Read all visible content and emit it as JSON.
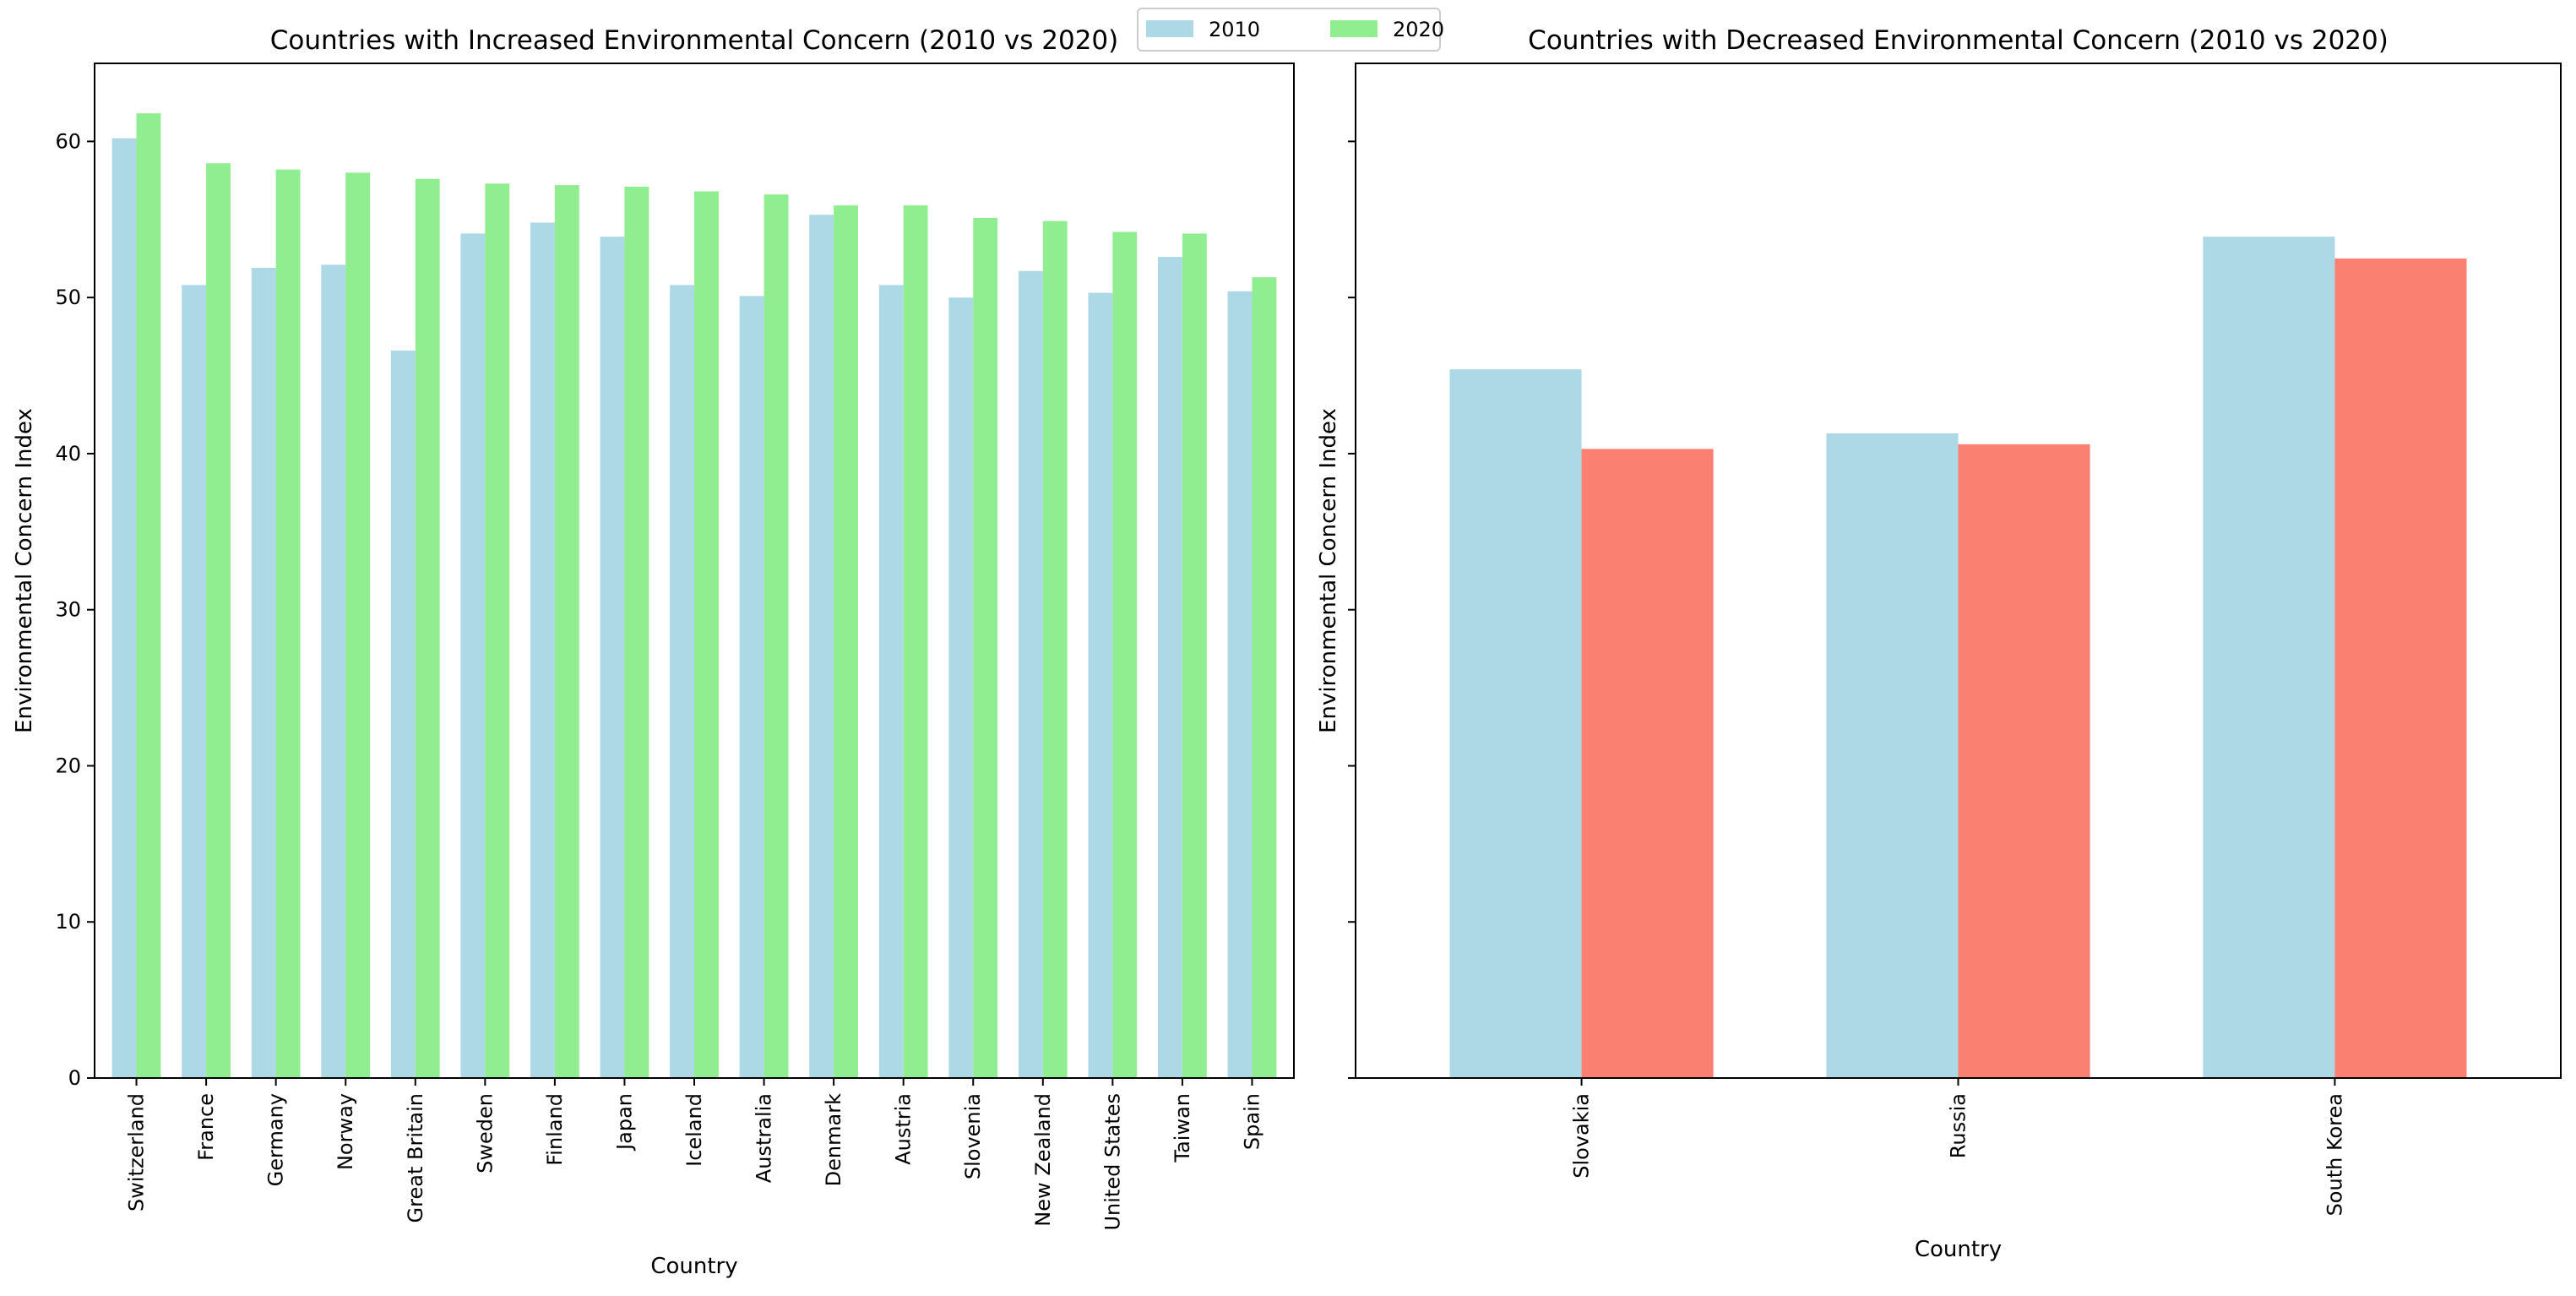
{
  "legend": {
    "labels": [
      "2010",
      "2020"
    ],
    "colors": [
      "#add8e6",
      "#90ee90"
    ]
  },
  "colors": {
    "y2010": "#add8e6",
    "y2020_increase": "#90ee90",
    "y2020_decrease": "#fa8072",
    "axis": "#000000"
  },
  "chart_data": [
    {
      "type": "bar",
      "title": "Countries with Increased Environmental Concern (2010 vs 2020)",
      "xlabel": "Country",
      "ylabel": "Environmental Concern Index",
      "ylim": [
        0,
        65
      ],
      "yticks": [
        0,
        10,
        20,
        30,
        40,
        50,
        60
      ],
      "categories": [
        "Switzerland",
        "France",
        "Germany",
        "Norway",
        "Great Britain",
        "Sweden",
        "Finland",
        "Japan",
        "Iceland",
        "Australia",
        "Denmark",
        "Austria",
        "Slovenia",
        "New Zealand",
        "United States",
        "Taiwan",
        "Spain"
      ],
      "series": [
        {
          "name": "2010",
          "color": "#add8e6",
          "values": [
            60.2,
            50.8,
            51.9,
            52.1,
            46.6,
            54.1,
            54.8,
            53.9,
            50.8,
            50.1,
            55.3,
            50.8,
            50.0,
            51.7,
            50.3,
            52.6,
            50.4
          ]
        },
        {
          "name": "2020",
          "color": "#90ee90",
          "values": [
            61.8,
            58.6,
            58.2,
            58.0,
            57.6,
            57.3,
            57.2,
            57.1,
            56.8,
            56.6,
            55.9,
            55.9,
            55.1,
            54.9,
            54.2,
            54.1,
            51.3
          ]
        }
      ],
      "grid": false
    },
    {
      "type": "bar",
      "title": "Countries with Decreased Environmental Concern (2010 vs 2020)",
      "xlabel": "Country",
      "ylabel": "Environmental Concern Index",
      "ylim": [
        0,
        65
      ],
      "shared_y": true,
      "categories": [
        "Slovakia",
        "Russia",
        "South Korea"
      ],
      "series": [
        {
          "name": "2010",
          "color": "#add8e6",
          "values": [
            45.4,
            41.3,
            53.9
          ]
        },
        {
          "name": "2020",
          "color": "#fa8072",
          "values": [
            40.3,
            40.6,
            52.5
          ]
        }
      ],
      "grid": false
    }
  ]
}
